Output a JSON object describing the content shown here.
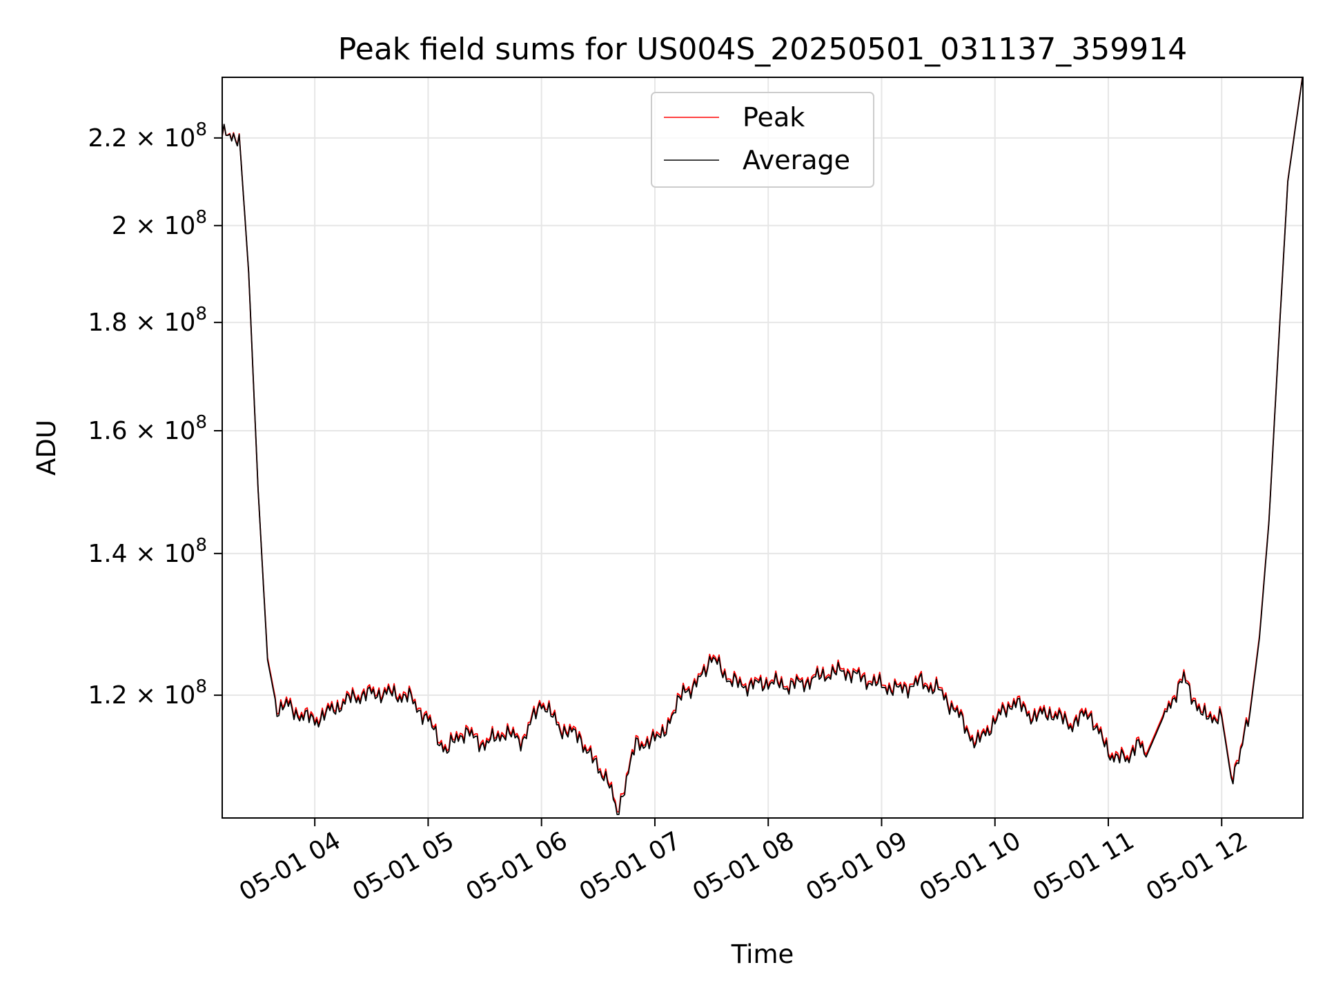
{
  "chart_data": {
    "type": "line",
    "title": "Peak field sums for US004S_20250501_031137_359914",
    "xlabel": "Time",
    "ylabel": "ADU",
    "x_scale": "time",
    "y_scale": "log",
    "xlim": [
      "05-01 03:11",
      "05-01 12:43"
    ],
    "ylim": [
      105000000,
      235000000
    ],
    "grid": true,
    "legend_position": "top-center",
    "x_ticks": [
      "05-01 04",
      "05-01 05",
      "05-01 06",
      "05-01 07",
      "05-01 08",
      "05-01 09",
      "05-01 10",
      "05-01 11",
      "05-01 12"
    ],
    "y_ticks": [
      {
        "value": 120000000,
        "mantissa": "1.2",
        "exponent": "8"
      },
      {
        "value": 140000000,
        "mantissa": "1.4",
        "exponent": "8"
      },
      {
        "value": 160000000,
        "mantissa": "1.6",
        "exponent": "8"
      },
      {
        "value": 180000000,
        "mantissa": "1.8",
        "exponent": "8"
      },
      {
        "value": 200000000,
        "mantissa": "2",
        "exponent": "8"
      },
      {
        "value": 220000000,
        "mantissa": "2.2",
        "exponent": "8"
      }
    ],
    "times": [
      "03:11",
      "03:15",
      "03:20",
      "03:25",
      "03:30",
      "03:35",
      "03:40",
      "03:45",
      "03:50",
      "03:55",
      "04:00",
      "04:10",
      "04:20",
      "04:30",
      "04:40",
      "04:50",
      "05:00",
      "05:10",
      "05:15",
      "05:20",
      "05:30",
      "05:40",
      "05:50",
      "06:00",
      "06:10",
      "06:20",
      "06:30",
      "06:35",
      "06:40",
      "06:45",
      "06:50",
      "07:00",
      "07:10",
      "07:15",
      "07:20",
      "07:25",
      "07:30",
      "07:35",
      "07:40",
      "07:50",
      "08:00",
      "08:10",
      "08:20",
      "08:30",
      "08:40",
      "08:50",
      "09:00",
      "09:10",
      "09:20",
      "09:30",
      "09:40",
      "09:50",
      "10:00",
      "10:10",
      "10:20",
      "10:30",
      "10:40",
      "10:50",
      "11:00",
      "11:10",
      "11:15",
      "11:20",
      "11:30",
      "11:40",
      "11:50",
      "12:00",
      "12:05",
      "12:10",
      "12:15",
      "12:20",
      "12:25",
      "12:30",
      "12:35",
      "12:43"
    ],
    "series": [
      {
        "name": "Peak",
        "color": "#ff0000",
        "values": [
          221000000,
          220000000,
          221000000,
          190000000,
          150000000,
          125000000,
          118500000,
          119000000,
          118000000,
          117500000,
          117000000,
          118500000,
          120000000,
          120500000,
          120500000,
          120000000,
          117000000,
          113000000,
          115000000,
          115500000,
          114000000,
          115500000,
          114500000,
          119500000,
          116000000,
          115000000,
          111000000,
          110000000,
          105500000,
          110000000,
          114000000,
          114500000,
          117500000,
          121500000,
          120500000,
          123500000,
          125000000,
          124000000,
          122000000,
          121500000,
          122000000,
          121500000,
          122000000,
          123000000,
          123500000,
          122500000,
          121500000,
          121000000,
          122000000,
          121000000,
          118000000,
          114000000,
          117000000,
          119500000,
          117500000,
          118000000,
          116500000,
          118000000,
          113000000,
          112000000,
          114500000,
          112500000,
          118000000,
          122500000,
          117500000,
          117500000,
          110000000,
          113000000,
          118000000,
          128000000,
          145000000,
          175000000,
          210000000,
          236000000
        ]
      },
      {
        "name": "Average",
        "color": "#000000",
        "values": [
          221200000,
          219800000,
          220800000,
          190200000,
          150100000,
          124700000,
          118200000,
          118700000,
          117700000,
          117200000,
          116700000,
          118200000,
          119700000,
          120200000,
          120200000,
          119700000,
          116700000,
          112700000,
          114700000,
          115200000,
          113700000,
          115200000,
          114200000,
          119200000,
          115700000,
          114700000,
          110700000,
          109700000,
          105200000,
          109700000,
          113700000,
          114200000,
          117200000,
          121200000,
          120200000,
          123200000,
          124700000,
          123700000,
          121700000,
          121200000,
          121700000,
          121200000,
          121700000,
          122700000,
          123200000,
          122200000,
          121200000,
          120700000,
          121700000,
          120700000,
          117700000,
          113700000,
          116700000,
          119200000,
          117200000,
          117700000,
          116200000,
          117700000,
          112700000,
          111700000,
          114200000,
          112200000,
          117700000,
          122200000,
          117200000,
          117200000,
          109700000,
          112700000,
          117700000,
          127700000,
          144800000,
          174800000,
          209800000,
          235800000
        ]
      }
    ]
  }
}
